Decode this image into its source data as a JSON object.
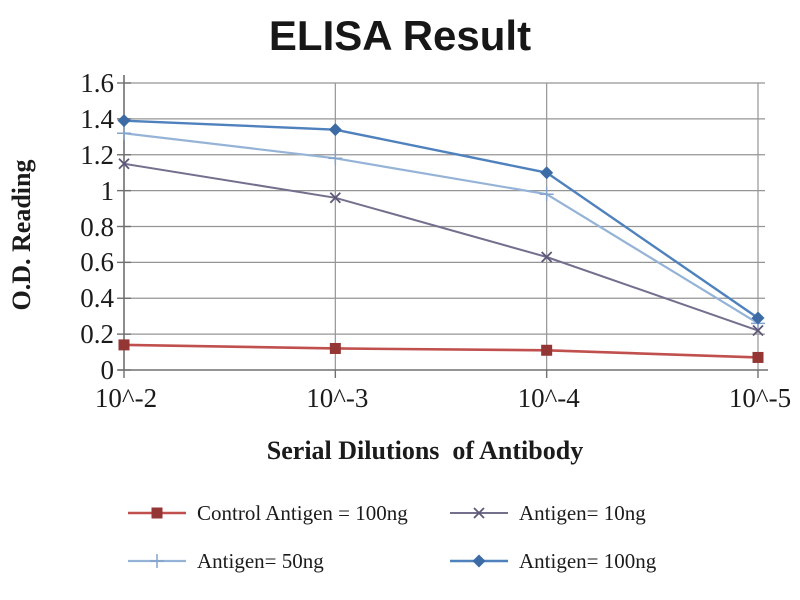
{
  "chart_data": {
    "type": "line",
    "title": "ELISA Result",
    "xlabel": "Serial Dilutions  of Antibody",
    "ylabel": "O.D. Reading",
    "categories": [
      "10^-2",
      "10^-3",
      "10^-4",
      "10^-5"
    ],
    "ylim": [
      0,
      1.6
    ],
    "ytick_values": [
      0,
      0.2,
      0.4,
      0.6,
      0.8,
      1,
      1.2,
      1.4,
      1.6
    ],
    "ytick_labels": [
      "0",
      "0.2",
      "0.4",
      "0.6",
      "0.8",
      "1",
      "1.2",
      "1.4",
      "1.6"
    ],
    "grid": true,
    "legend_position": "bottom",
    "colors": {
      "grid": "#959595",
      "axis": "#707070",
      "text": "#1b1b1b",
      "background": "#ffffff"
    },
    "series": [
      {
        "name": "Control Antigen = 100ng",
        "marker": "square",
        "line_color": "#c0504d",
        "marker_color": "#943634",
        "values": [
          0.14,
          0.12,
          0.11,
          0.07
        ]
      },
      {
        "name": "Antigen= 10ng",
        "marker": "x",
        "line_color": "#73708e",
        "marker_color": "#5d5878",
        "values": [
          1.15,
          0.96,
          0.63,
          0.22
        ]
      },
      {
        "name": "Antigen= 50ng",
        "marker": "plus",
        "line_color": "#95b3d7",
        "marker_color": "#84a3cb",
        "values": [
          1.32,
          1.18,
          0.98,
          0.26
        ]
      },
      {
        "name": "Antigen= 100ng",
        "marker": "diamond",
        "line_color": "#4f81bd",
        "marker_color": "#3c6ba5",
        "values": [
          1.39,
          1.34,
          1.1,
          0.29
        ]
      }
    ],
    "legend_rows": [
      [
        0,
        1
      ],
      [
        2,
        3
      ]
    ]
  }
}
